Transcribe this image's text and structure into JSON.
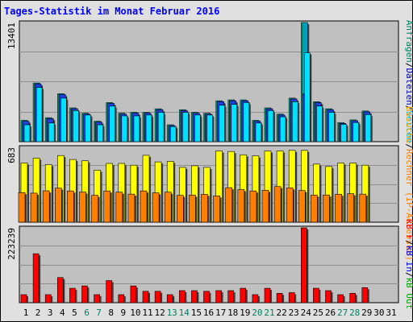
{
  "title": "Tages-Statistik im Monat Februar 2016",
  "colors": {
    "background": "#e0e0e0",
    "plot": "#c0c0c0",
    "hits_dark": "#00805f",
    "hits": "#00a0c0",
    "files_dark": "#1f3fdf",
    "files": "#00e0ff",
    "pages_dark": "#1f3fdf",
    "pages": "#00c0ff",
    "visits": "#ffff00",
    "sites": "#ff8000",
    "kbytes": "#ff0000",
    "weekend_label": "#00805f",
    "weekday_label": "#000000"
  },
  "legend": {
    "top": [
      {
        "text": "Anfragen",
        "color": "#00805f"
      },
      {
        "text": "/",
        "color": "#000000"
      },
      {
        "text": "Dateien",
        "color": "#0000c0"
      },
      {
        "text": "/",
        "color": "#000000"
      },
      {
        "text": "Seiten",
        "color": "#00c0ff"
      }
    ],
    "middle": [
      {
        "text": "Besuche",
        "color": "#e0a000"
      },
      {
        "text": "/",
        "color": "#000000"
      },
      {
        "text": "Rechner (IP-Adressen)",
        "color": "#ff8000"
      }
    ],
    "bottom": [
      {
        "text": "kB F",
        "color": "#ff0000"
      },
      {
        "text": "/",
        "color": "#000000"
      },
      {
        "text": "kB In",
        "color": "#0000ff"
      },
      {
        "text": "/",
        "color": "#000000"
      },
      {
        "text": "kB Out",
        "color": "#00a000"
      }
    ]
  },
  "chart_data": {
    "type": "bar",
    "days": [
      "1",
      "2",
      "3",
      "4",
      "5",
      "6",
      "7",
      "8",
      "9",
      "10",
      "11",
      "12",
      "13",
      "14",
      "15",
      "16",
      "17",
      "18",
      "19",
      "20",
      "21",
      "22",
      "23",
      "24",
      "25",
      "26",
      "27",
      "28",
      "29",
      "30",
      "31"
    ],
    "weekend_days": [
      "6",
      "7",
      "13",
      "14",
      "20",
      "21",
      "27",
      "28"
    ],
    "panels": [
      {
        "name": "requests",
        "max_label": "13401",
        "max": 13401,
        "series": [
          {
            "name": "Anfragen",
            "values": [
              2400,
              6600,
              2700,
              5400,
              3800,
              3200,
              2300,
              4400,
              3200,
              3300,
              3300,
              3700,
              1900,
              3600,
              3300,
              3200,
              4600,
              4700,
              4700,
              2400,
              3800,
              3100,
              4900,
              13401,
              4500,
              3700,
              2150,
              2450,
              3450,
              0,
              0
            ]
          },
          {
            "name": "Dateien",
            "values": [
              2300,
              6500,
              2600,
              5300,
              3700,
              3100,
              2200,
              4300,
              3100,
              3200,
              3200,
              3600,
              1800,
              3500,
              3200,
              3100,
              4500,
              4600,
              4600,
              2300,
              3700,
              3000,
              4800,
              5400,
              4400,
              3600,
              2050,
              2350,
              3350,
              0,
              0
            ]
          },
          {
            "name": "Seiten",
            "values": [
              1900,
              6100,
              2100,
              4900,
              3500,
              3000,
              1900,
              4000,
              2900,
              2900,
              3000,
              3300,
              1700,
              3300,
              3000,
              3000,
              4100,
              4200,
              4400,
              2100,
              3500,
              2800,
              4500,
              10000,
              4000,
              3300,
              1950,
              2150,
              3050,
              0,
              0
            ]
          }
        ]
      },
      {
        "name": "visits",
        "max_label": "683",
        "max": 683,
        "series": [
          {
            "name": "Besuche",
            "values": [
              540,
              585,
              525,
              608,
              572,
              560,
              475,
              536,
              536,
              520,
              610,
              550,
              555,
              500,
              515,
              500,
              650,
              645,
              615,
              605,
              650,
              650,
              655,
              655,
              530,
              508,
              540,
              540,
              520,
              0,
              0
            ]
          },
          {
            "name": "Rechner",
            "values": [
              270,
              265,
              286,
              311,
              285,
              275,
              245,
              285,
              274,
              256,
              285,
              268,
              274,
              245,
              247,
              254,
              240,
              315,
              297,
              285,
              291,
              325,
              313,
              289,
              247,
              248,
              255,
              260,
              256,
              0,
              0
            ]
          }
        ]
      },
      {
        "name": "kbytes",
        "max_label": "223239",
        "max": 223239,
        "series": [
          {
            "name": "kB F",
            "values": [
              24000,
              146000,
              24000,
              75000,
              43000,
              50000,
              24000,
              66000,
              24000,
              50000,
              34000,
              34000,
              24000,
              36000,
              36000,
              34000,
              36000,
              36000,
              43000,
              24000,
              43000,
              28000,
              30000,
              223239,
              43000,
              36000,
              24000,
              28000,
              45000,
              0,
              0
            ]
          }
        ]
      }
    ]
  }
}
